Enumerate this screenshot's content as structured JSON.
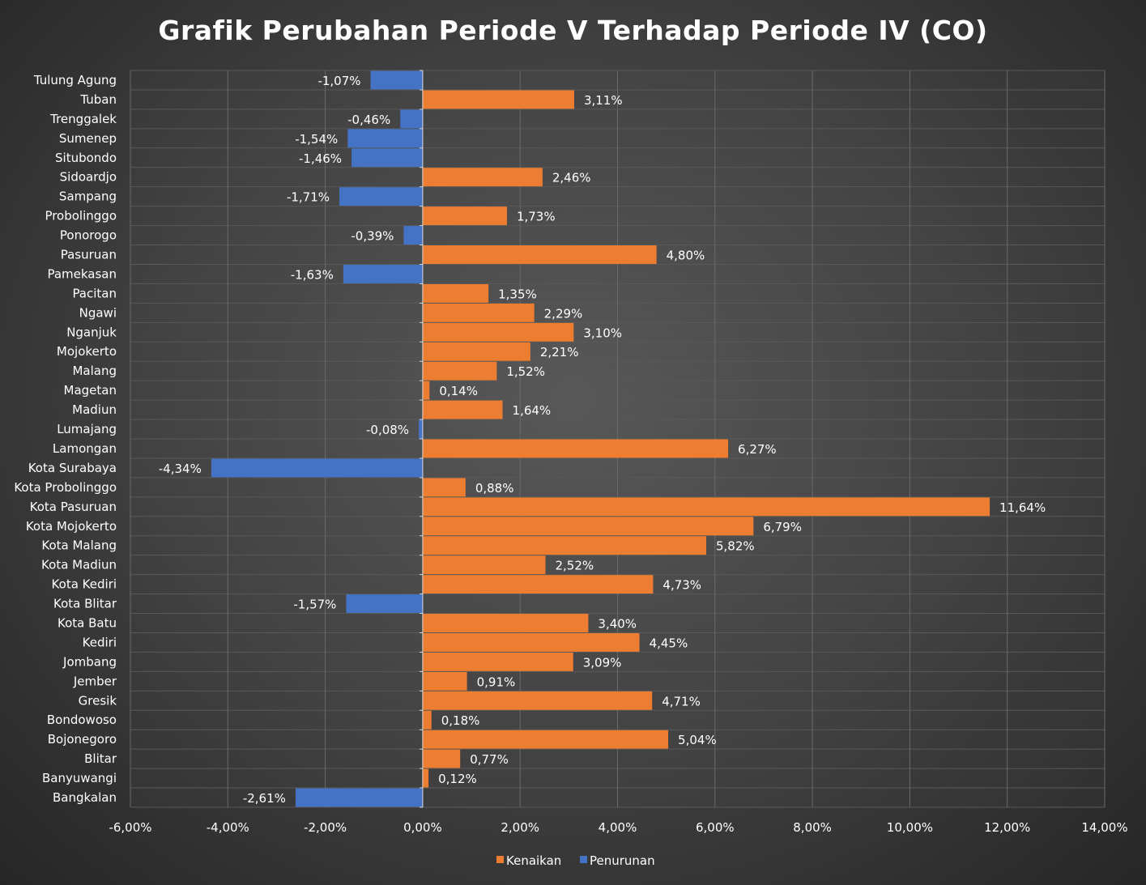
{
  "chart_data": {
    "type": "bar",
    "orientation": "horizontal",
    "title": "Grafik Perubahan Periode V Terhadap Periode IV (CO)",
    "categories": [
      "Tulung Agung",
      "Tuban",
      "Trenggalek",
      "Sumenep",
      "Situbondo",
      "Sidoardjo",
      "Sampang",
      "Probolinggo",
      "Ponorogo",
      "Pasuruan",
      "Pamekasan",
      "Pacitan",
      "Ngawi",
      "Nganjuk",
      "Mojokerto",
      "Malang",
      "Magetan",
      "Madiun",
      "Lumajang",
      "Lamongan",
      "Kota Surabaya",
      "Kota Probolinggo",
      "Kota Pasuruan",
      "Kota Mojokerto",
      "Kota Malang",
      "Kota Madiun",
      "Kota Kediri",
      "Kota Blitar",
      "Kota Batu",
      "Kediri",
      "Jombang",
      "Jember",
      "Gresik",
      "Bondowoso",
      "Bojonegoro",
      "Blitar",
      "Banyuwangi",
      "Bangkalan"
    ],
    "values": [
      -1.07,
      3.11,
      -0.46,
      -1.54,
      -1.46,
      2.46,
      -1.71,
      1.73,
      -0.39,
      4.8,
      -1.63,
      1.35,
      2.29,
      3.1,
      2.21,
      1.52,
      0.14,
      1.64,
      -0.08,
      6.27,
      -4.34,
      0.88,
      11.64,
      6.79,
      5.82,
      2.52,
      4.73,
      -1.57,
      3.4,
      4.45,
      3.09,
      0.91,
      4.71,
      0.18,
      5.04,
      0.77,
      0.12,
      -2.61
    ],
    "value_labels": [
      "-1,07%",
      "3,11%",
      "-0,46%",
      "-1,54%",
      "-1,46%",
      "2,46%",
      "-1,71%",
      "1,73%",
      "-0,39%",
      "4,80%",
      "-1,63%",
      "1,35%",
      "2,29%",
      "3,10%",
      "2,21%",
      "1,52%",
      "0,14%",
      "1,64%",
      "-0,08%",
      "6,27%",
      "-4,34%",
      "0,88%",
      "11,64%",
      "6,79%",
      "5,82%",
      "2,52%",
      "4,73%",
      "-1,57%",
      "3,40%",
      "4,45%",
      "3,09%",
      "0,91%",
      "4,71%",
      "0,18%",
      "5,04%",
      "0,77%",
      "0,12%",
      "-2,61%"
    ],
    "x_ticks": [
      -6,
      -4,
      -2,
      0,
      2,
      4,
      6,
      8,
      10,
      12,
      14
    ],
    "x_tick_labels": [
      "-6,00%",
      "-4,00%",
      "-2,00%",
      "0,00%",
      "2,00%",
      "4,00%",
      "6,00%",
      "8,00%",
      "10,00%",
      "12,00%",
      "14,00%"
    ],
    "xlim": [
      -6,
      14
    ],
    "grid": true,
    "legend": {
      "position": "bottom",
      "entries": [
        {
          "name": "Kenaikan",
          "color": "#ED7D31"
        },
        {
          "name": "Penurunan",
          "color": "#4472C4"
        }
      ]
    },
    "colors": {
      "positive": "#ED7D31",
      "negative": "#4472C4"
    }
  }
}
